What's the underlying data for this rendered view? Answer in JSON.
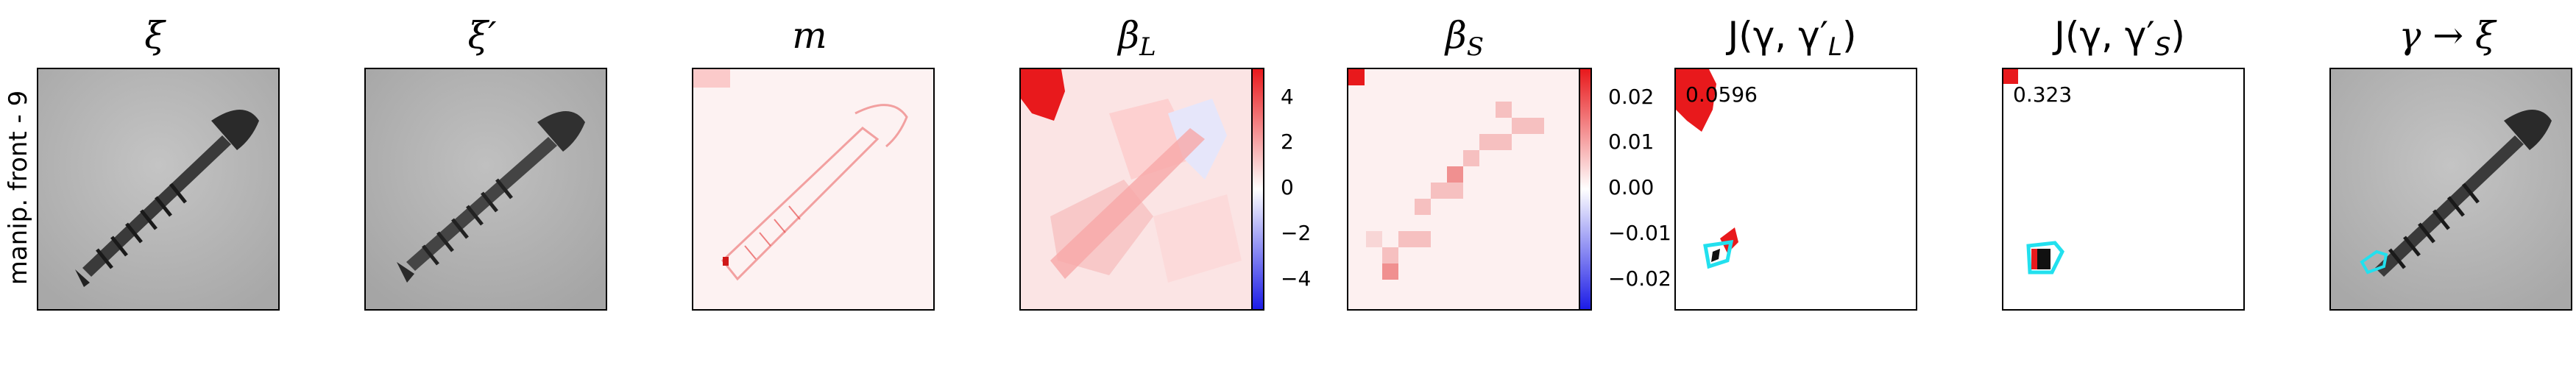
{
  "row_label": "manip. front - 9",
  "titles": {
    "xi": "ξ",
    "xi_prime": "ξ′",
    "m": "m",
    "beta_l_base": "β",
    "beta_l_sub": "L",
    "beta_s_base": "β",
    "beta_s_sub": "S",
    "j_l": "J(γ, γ′",
    "j_l_sub": "L",
    "j_s": "J(γ, γ′",
    "j_s_sub": "S",
    "gamma_to_xi": "γ → ξ"
  },
  "colorbar_l_ticks": [
    "4",
    "2",
    "0",
    "−2",
    "−4"
  ],
  "colorbar_s_ticks": [
    "0.02",
    "0.01",
    "0.00",
    "−0.01",
    "−0.02"
  ],
  "scores": {
    "j_l": "0.0596",
    "j_s": "0.323"
  },
  "colors": {
    "red": "#e8191c",
    "blue": "#1c1ce6",
    "cyan": "#22e0ee"
  }
}
